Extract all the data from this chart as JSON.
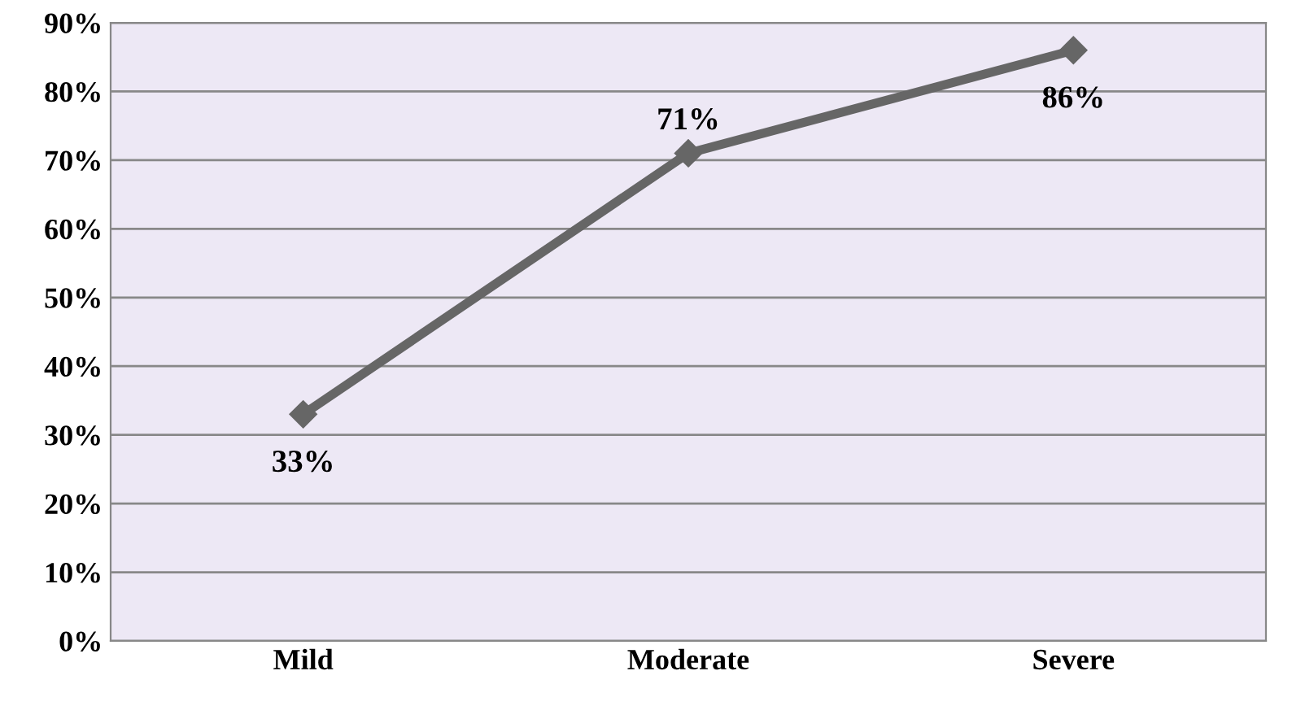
{
  "chart_data": {
    "type": "line",
    "categories": [
      "Mild",
      "Moderate",
      "Severe"
    ],
    "series": [
      {
        "color": "#666666",
        "values": [
          33,
          71,
          86
        ],
        "value_labels": [
          "33%",
          "71%",
          "86%"
        ]
      }
    ],
    "ylim": [
      0,
      90
    ],
    "yticks": [
      {
        "value": 0,
        "label": "0%"
      },
      {
        "value": 10,
        "label": "10%"
      },
      {
        "value": 20,
        "label": "20%"
      },
      {
        "value": 30,
        "label": "30%"
      },
      {
        "value": 40,
        "label": "40%"
      },
      {
        "value": 50,
        "label": "50%"
      },
      {
        "value": 60,
        "label": "60%"
      },
      {
        "value": 70,
        "label": "70%"
      },
      {
        "value": 80,
        "label": "80%"
      },
      {
        "value": 90,
        "label": "90%"
      }
    ],
    "grid": "y",
    "marker": "diamond",
    "line_style": "solid"
  }
}
